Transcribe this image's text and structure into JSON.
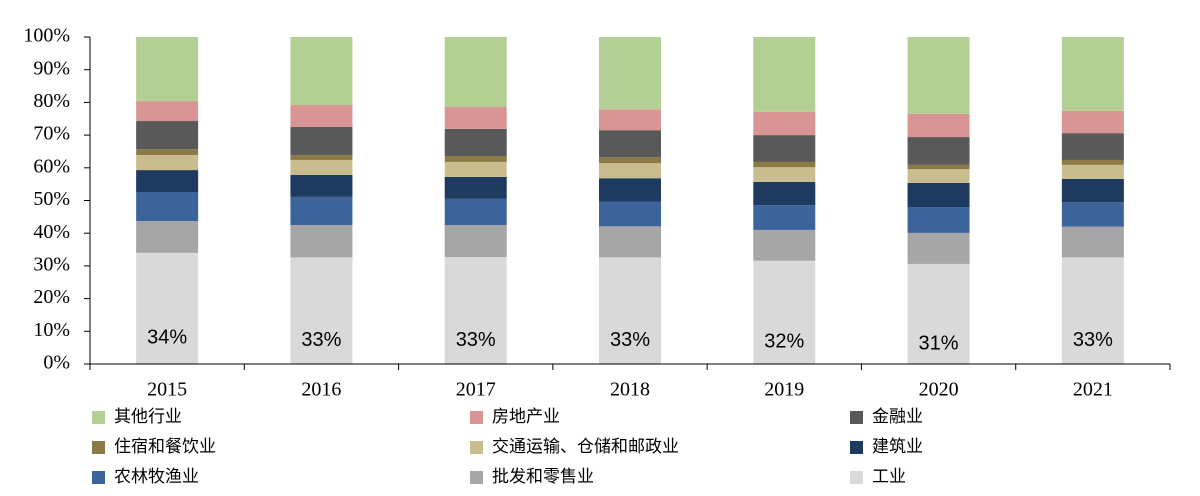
{
  "chart_data": {
    "type": "stacked_bar",
    "categories": [
      "2015",
      "2016",
      "2017",
      "2018",
      "2019",
      "2020",
      "2021"
    ],
    "series": [
      {
        "name": "工业",
        "color": "#d9d9d9",
        "values": [
          34.0,
          32.6,
          32.7,
          32.6,
          31.6,
          30.6,
          32.6
        ],
        "value_labels": [
          "34%",
          "33%",
          "33%",
          "33%",
          "32%",
          "31%",
          "33%"
        ]
      },
      {
        "name": "批发和零售业",
        "color": "#a6a6a6",
        "values": [
          9.7,
          9.9,
          9.8,
          9.5,
          9.4,
          9.5,
          9.4
        ]
      },
      {
        "name": "农林牧渔业",
        "color": "#3d649a",
        "values": [
          8.9,
          8.6,
          8.0,
          7.6,
          7.6,
          7.9,
          7.5
        ]
      },
      {
        "name": "建筑业",
        "color": "#1f3a5f",
        "values": [
          6.7,
          6.7,
          6.7,
          7.1,
          7.1,
          7.4,
          7.1
        ]
      },
      {
        "name": "交通运输、仓储和邮政业",
        "color": "#c9bd8f",
        "values": [
          4.6,
          4.6,
          4.6,
          4.6,
          4.5,
          4.2,
          4.3
        ]
      },
      {
        "name": "住宿和餐饮业",
        "color": "#8c7a45",
        "values": [
          1.8,
          1.5,
          1.8,
          1.8,
          1.6,
          1.3,
          1.5
        ]
      },
      {
        "name": "金融业",
        "color": "#595959",
        "values": [
          8.6,
          8.6,
          8.3,
          8.3,
          8.2,
          8.5,
          8.2
        ]
      },
      {
        "name": "房地产业",
        "color": "#d99594",
        "values": [
          6.1,
          6.7,
          6.7,
          6.4,
          7.1,
          7.1,
          6.8
        ]
      },
      {
        "name": "其他行业",
        "color": "#b3cf93",
        "values": [
          19.6,
          20.8,
          21.4,
          22.1,
          22.9,
          23.5,
          22.6
        ]
      }
    ],
    "ylim": [
      0,
      100
    ],
    "yticks": [
      {
        "value": 0,
        "label": "0%"
      },
      {
        "value": 10,
        "label": "10%"
      },
      {
        "value": 20,
        "label": "20%"
      },
      {
        "value": 30,
        "label": "30%"
      },
      {
        "value": 40,
        "label": "40%"
      },
      {
        "value": 50,
        "label": "50%"
      },
      {
        "value": 60,
        "label": "60%"
      },
      {
        "value": 70,
        "label": "70%"
      },
      {
        "value": 80,
        "label": "80%"
      },
      {
        "value": 90,
        "label": "90%"
      },
      {
        "value": 100,
        "label": "100%"
      }
    ]
  }
}
